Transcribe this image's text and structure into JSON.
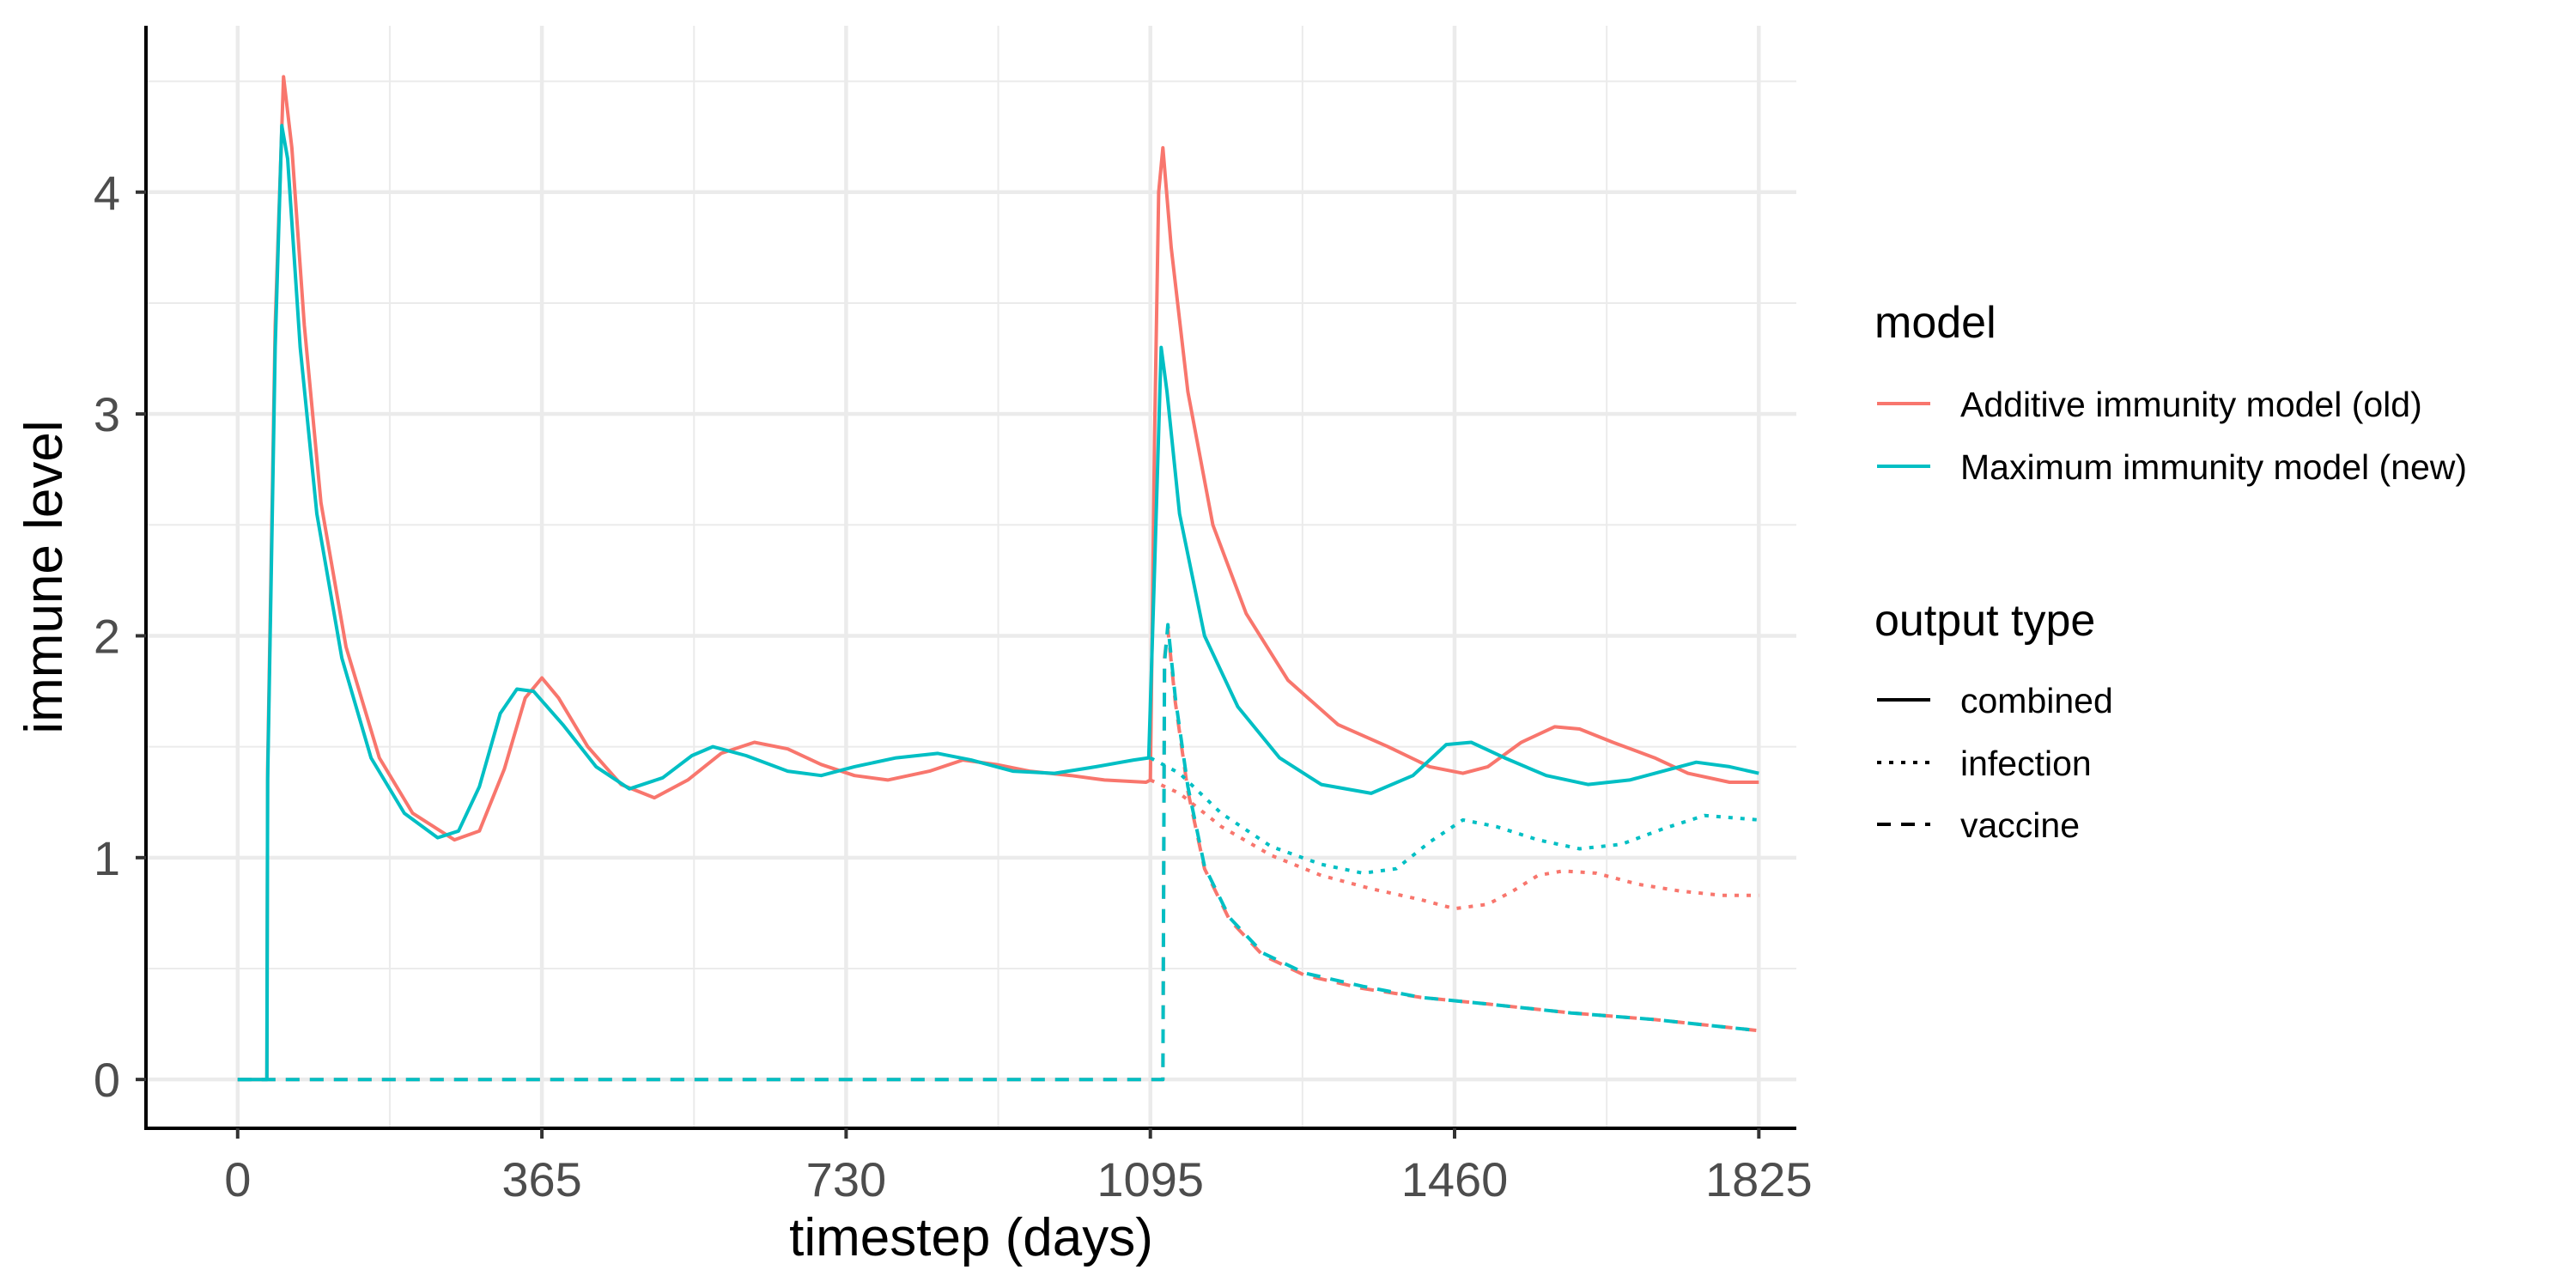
{
  "chart_data": {
    "type": "line",
    "xlabel": "timestep (days)",
    "ylabel": "immune level",
    "xlim": [
      -110,
      1870
    ],
    "ylim": [
      -0.22,
      4.75
    ],
    "x_ticks": [
      0,
      365,
      730,
      1095,
      1460,
      1825
    ],
    "x_minor_ticks": [
      182.5,
      547.5,
      912.5,
      1277.5,
      1642.5
    ],
    "y_ticks": [
      0,
      1,
      2,
      3,
      4
    ],
    "y_minor_ticks": [
      0.5,
      1.5,
      2.5,
      3.5,
      4.5
    ],
    "grid": true,
    "legend_position": "right",
    "legends": [
      {
        "title": "model",
        "kind": "color",
        "entries": [
          {
            "label": "Additive immunity model (old)",
            "color": "#F8766D"
          },
          {
            "label": "Maximum immunity model (new)",
            "color": "#00BFC4"
          }
        ]
      },
      {
        "title": "output type",
        "kind": "linetype",
        "entries": [
          {
            "label": "combined",
            "linetype": "solid"
          },
          {
            "label": "infection",
            "linetype": "dotted"
          },
          {
            "label": "vaccine",
            "linetype": "dashed"
          }
        ]
      }
    ],
    "series": [
      {
        "model": "Additive immunity model (old)",
        "output": "combined",
        "color": "#F8766D",
        "linetype": "solid",
        "points": [
          [
            0,
            0
          ],
          [
            35,
            0
          ],
          [
            36,
            1.4
          ],
          [
            45,
            3.4
          ],
          [
            55,
            4.52
          ],
          [
            65,
            4.2
          ],
          [
            80,
            3.4
          ],
          [
            100,
            2.6
          ],
          [
            130,
            1.95
          ],
          [
            170,
            1.45
          ],
          [
            210,
            1.2
          ],
          [
            260,
            1.08
          ],
          [
            290,
            1.12
          ],
          [
            320,
            1.4
          ],
          [
            345,
            1.72
          ],
          [
            365,
            1.81
          ],
          [
            385,
            1.72
          ],
          [
            420,
            1.5
          ],
          [
            460,
            1.33
          ],
          [
            500,
            1.27
          ],
          [
            540,
            1.35
          ],
          [
            580,
            1.47
          ],
          [
            620,
            1.52
          ],
          [
            660,
            1.49
          ],
          [
            700,
            1.42
          ],
          [
            740,
            1.37
          ],
          [
            780,
            1.35
          ],
          [
            830,
            1.39
          ],
          [
            870,
            1.44
          ],
          [
            910,
            1.42
          ],
          [
            950,
            1.39
          ],
          [
            1000,
            1.37
          ],
          [
            1040,
            1.35
          ],
          [
            1090,
            1.34
          ],
          [
            1095,
            1.35
          ],
          [
            1100,
            2.9
          ],
          [
            1105,
            4.0
          ],
          [
            1110,
            4.2
          ],
          [
            1120,
            3.75
          ],
          [
            1140,
            3.1
          ],
          [
            1170,
            2.5
          ],
          [
            1210,
            2.1
          ],
          [
            1260,
            1.8
          ],
          [
            1320,
            1.6
          ],
          [
            1380,
            1.5
          ],
          [
            1430,
            1.41
          ],
          [
            1470,
            1.38
          ],
          [
            1500,
            1.41
          ],
          [
            1540,
            1.52
          ],
          [
            1580,
            1.59
          ],
          [
            1610,
            1.58
          ],
          [
            1650,
            1.52
          ],
          [
            1700,
            1.45
          ],
          [
            1740,
            1.38
          ],
          [
            1790,
            1.34
          ],
          [
            1825,
            1.34
          ]
        ]
      },
      {
        "model": "Additive immunity model (old)",
        "output": "infection",
        "color": "#F8766D",
        "linetype": "dotted",
        "points": [
          [
            1095,
            1.35
          ],
          [
            1130,
            1.29
          ],
          [
            1180,
            1.14
          ],
          [
            1240,
            1.01
          ],
          [
            1300,
            0.92
          ],
          [
            1360,
            0.86
          ],
          [
            1420,
            0.81
          ],
          [
            1460,
            0.77
          ],
          [
            1500,
            0.79
          ],
          [
            1530,
            0.85
          ],
          [
            1560,
            0.92
          ],
          [
            1590,
            0.94
          ],
          [
            1630,
            0.93
          ],
          [
            1680,
            0.88
          ],
          [
            1730,
            0.85
          ],
          [
            1780,
            0.83
          ],
          [
            1825,
            0.83
          ]
        ]
      },
      {
        "model": "Additive immunity model (old)",
        "output": "vaccine",
        "color": "#F8766D",
        "linetype": "dashed",
        "points": [
          [
            0,
            0
          ],
          [
            1110,
            0
          ],
          [
            1112,
            1.9
          ],
          [
            1116,
            2.03
          ],
          [
            1125,
            1.7
          ],
          [
            1140,
            1.3
          ],
          [
            1160,
            0.95
          ],
          [
            1190,
            0.72
          ],
          [
            1230,
            0.56
          ],
          [
            1280,
            0.47
          ],
          [
            1350,
            0.41
          ],
          [
            1420,
            0.37
          ],
          [
            1500,
            0.34
          ],
          [
            1600,
            0.3
          ],
          [
            1700,
            0.27
          ],
          [
            1825,
            0.22
          ]
        ]
      },
      {
        "model": "Maximum immunity model (new)",
        "output": "combined",
        "color": "#00BFC4",
        "linetype": "solid",
        "points": [
          [
            0,
            0
          ],
          [
            35,
            0
          ],
          [
            36,
            1.35
          ],
          [
            45,
            3.3
          ],
          [
            53,
            4.3
          ],
          [
            60,
            4.15
          ],
          [
            75,
            3.3
          ],
          [
            95,
            2.55
          ],
          [
            125,
            1.9
          ],
          [
            160,
            1.45
          ],
          [
            200,
            1.2
          ],
          [
            240,
            1.09
          ],
          [
            265,
            1.12
          ],
          [
            290,
            1.32
          ],
          [
            315,
            1.65
          ],
          [
            335,
            1.76
          ],
          [
            355,
            1.75
          ],
          [
            390,
            1.6
          ],
          [
            430,
            1.41
          ],
          [
            470,
            1.31
          ],
          [
            510,
            1.36
          ],
          [
            545,
            1.46
          ],
          [
            570,
            1.5
          ],
          [
            610,
            1.46
          ],
          [
            660,
            1.39
          ],
          [
            700,
            1.37
          ],
          [
            740,
            1.41
          ],
          [
            790,
            1.45
          ],
          [
            840,
            1.47
          ],
          [
            880,
            1.44
          ],
          [
            930,
            1.39
          ],
          [
            980,
            1.38
          ],
          [
            1030,
            1.41
          ],
          [
            1075,
            1.44
          ],
          [
            1093,
            1.45
          ],
          [
            1100,
            2.3
          ],
          [
            1108,
            3.3
          ],
          [
            1115,
            3.1
          ],
          [
            1130,
            2.55
          ],
          [
            1160,
            2.0
          ],
          [
            1200,
            1.68
          ],
          [
            1250,
            1.45
          ],
          [
            1300,
            1.33
          ],
          [
            1360,
            1.29
          ],
          [
            1410,
            1.37
          ],
          [
            1450,
            1.51
          ],
          [
            1480,
            1.52
          ],
          [
            1520,
            1.45
          ],
          [
            1570,
            1.37
          ],
          [
            1620,
            1.33
          ],
          [
            1670,
            1.35
          ],
          [
            1710,
            1.39
          ],
          [
            1750,
            1.43
          ],
          [
            1790,
            1.41
          ],
          [
            1825,
            1.38
          ]
        ]
      },
      {
        "model": "Maximum immunity model (new)",
        "output": "infection",
        "color": "#00BFC4",
        "linetype": "dotted",
        "points": [
          [
            1095,
            1.45
          ],
          [
            1130,
            1.38
          ],
          [
            1180,
            1.2
          ],
          [
            1240,
            1.05
          ],
          [
            1300,
            0.97
          ],
          [
            1350,
            0.93
          ],
          [
            1390,
            0.95
          ],
          [
            1430,
            1.07
          ],
          [
            1470,
            1.17
          ],
          [
            1510,
            1.14
          ],
          [
            1560,
            1.08
          ],
          [
            1610,
            1.04
          ],
          [
            1660,
            1.06
          ],
          [
            1710,
            1.13
          ],
          [
            1760,
            1.19
          ],
          [
            1825,
            1.17
          ]
        ]
      },
      {
        "model": "Maximum immunity model (new)",
        "output": "vaccine",
        "color": "#00BFC4",
        "linetype": "dashed",
        "points": [
          [
            0,
            0
          ],
          [
            1110,
            0
          ],
          [
            1112,
            1.88
          ],
          [
            1116,
            2.05
          ],
          [
            1125,
            1.72
          ],
          [
            1140,
            1.32
          ],
          [
            1160,
            0.96
          ],
          [
            1190,
            0.73
          ],
          [
            1230,
            0.57
          ],
          [
            1280,
            0.48
          ],
          [
            1350,
            0.42
          ],
          [
            1420,
            0.37
          ],
          [
            1500,
            0.34
          ],
          [
            1600,
            0.3
          ],
          [
            1700,
            0.27
          ],
          [
            1825,
            0.22
          ]
        ]
      }
    ]
  }
}
